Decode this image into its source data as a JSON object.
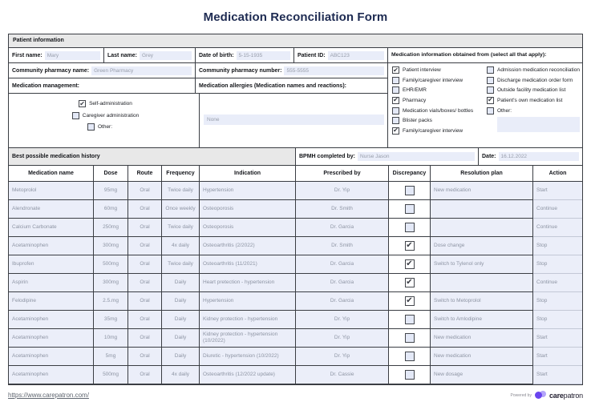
{
  "title": "Medication Reconciliation Form",
  "colors": {
    "title_navy": "#1e2b52",
    "field_lavender": "#e9edf9",
    "section_gray": "#e8e8e8",
    "brand_purple": "#6a45ef",
    "brand_purple_light": "#b3a5fa"
  },
  "patient": {
    "section_title": "Patient information",
    "first_name": {
      "label": "First name:",
      "value": "Mary"
    },
    "last_name": {
      "label": "Last name:",
      "value": "Grey"
    },
    "dob": {
      "label": "Date of birth:",
      "value": "5-15-1935"
    },
    "patient_id": {
      "label": "Patient ID:",
      "value": "ABC123"
    },
    "pharmacy_name": {
      "label": "Community pharmacy name:",
      "value": "Green Pharmacy"
    },
    "pharmacy_number": {
      "label": "Community pharmacy number:",
      "value": "555-5555"
    },
    "management": {
      "label": "Medication management:",
      "options": [
        {
          "label": "Self-administration",
          "checked": true
        },
        {
          "label": "Caregiver administration",
          "checked": false
        },
        {
          "label": "Other:",
          "checked": false,
          "has_input": true
        }
      ]
    },
    "allergies": {
      "label": "Medication allergies (Medication names and reactions):",
      "value": "None"
    }
  },
  "sources": {
    "title": "Medication information obtained from (select all that apply):",
    "col1": [
      {
        "label": "Patient interview",
        "checked": true
      },
      {
        "label": "Family/caregiver interview",
        "checked": false
      },
      {
        "label": "EHR/EMR",
        "checked": false
      },
      {
        "label": "Pharmacy",
        "checked": true
      },
      {
        "label": "Medication vials/boxes/ bottles",
        "checked": false
      },
      {
        "label": "Blister packs",
        "checked": false
      },
      {
        "label": "Family/caregiver interview",
        "checked": true
      }
    ],
    "col2": [
      {
        "label": "Admission medication reconciliation",
        "checked": false
      },
      {
        "label": "Discharge medication order form",
        "checked": false
      },
      {
        "label": "Outside facility medication list",
        "checked": false
      },
      {
        "label": "Patient's own medication list",
        "checked": true
      },
      {
        "label": "Other:",
        "checked": false,
        "has_input_below": true
      }
    ]
  },
  "bpmh": {
    "history_label": "Best possible medication history",
    "completed_by_label": "BPMH completed by:",
    "completed_by_value": "Nurse Jason",
    "date_label": "Date:",
    "date_value": "16.12.2022"
  },
  "table": {
    "headers": [
      "Medication name",
      "Dose",
      "Route",
      "Frequency",
      "Indication",
      "Prescribed by",
      "Discrepancy",
      "Resolution plan",
      "Action"
    ],
    "rows": [
      {
        "medication": "Metoprolol",
        "dose": "95mg",
        "route": "Oral",
        "frequency": "Twice daily",
        "indication": "Hypertension",
        "prescriber": "Dr. Yip",
        "discrepancy": false,
        "resolution": "New medication",
        "action": "Start"
      },
      {
        "medication": "Alendronate",
        "dose": "60mg",
        "route": "Oral",
        "frequency": "Once weekly",
        "indication": "Osteoporosis",
        "prescriber": "Dr. Smith",
        "discrepancy": false,
        "resolution": "",
        "action": "Continue"
      },
      {
        "medication": "Calcium Carbonate",
        "dose": "250mg",
        "route": "Oral",
        "frequency": "Twice daily",
        "indication": "Osteoporosis",
        "prescriber": "Dr. Garcia",
        "discrepancy": false,
        "resolution": "",
        "action": "Continue"
      },
      {
        "medication": "Acetaminophen",
        "dose": "300mg",
        "route": "Oral",
        "frequency": "4x daily",
        "indication": "Osteoarthritis (2/2022)",
        "prescriber": "Dr. Smith",
        "discrepancy": true,
        "resolution": "Dose change",
        "action": "Stop"
      },
      {
        "medication": "Ibuprofen",
        "dose": "500mg",
        "route": "Oral",
        "frequency": "Twice daily",
        "indication": "Osteoarthritis (11/2021)",
        "prescriber": "Dr. Garcia",
        "discrepancy": true,
        "resolution": "Switch to Tylenol only",
        "action": "Stop"
      },
      {
        "medication": "Aspirin",
        "dose": "300mg",
        "route": "Oral",
        "frequency": "Daily",
        "indication": "Heart pretection - hypertension",
        "prescriber": "Dr. Garcia",
        "discrepancy": true,
        "resolution": "",
        "action": "Continue"
      },
      {
        "medication": "Felodipine",
        "dose": "2.5.mg",
        "route": "Oral",
        "frequency": "Daily",
        "indication": "Hypertension",
        "prescriber": "Dr. Garcia",
        "discrepancy": true,
        "resolution": "Switch to Metoprolol",
        "action": "Stop"
      },
      {
        "medication": "Acetaminophen",
        "dose": "35mg",
        "route": "Oral",
        "frequency": "Daily",
        "indication": "Kidney protection - hypertension",
        "prescriber": "Dr. Yip",
        "discrepancy": false,
        "resolution": "Switch to Amlodipine",
        "action": "Stop"
      },
      {
        "medication": "Acetaminophen",
        "dose": "10mg",
        "route": "Oral",
        "frequency": "Daily",
        "indication": "Kidney protection - hypertension (10/2022)",
        "prescriber": "Dr. Yip",
        "discrepancy": false,
        "resolution": "New medication",
        "action": "Start"
      },
      {
        "medication": "Acetaminophen",
        "dose": "5mg",
        "route": "Oral",
        "frequency": "Daily",
        "indication": "Diuretic - hypertension (10/2022)",
        "prescriber": "Dr. Yip",
        "discrepancy": false,
        "resolution": "New medication",
        "action": "Start"
      },
      {
        "medication": "Acetaminophen",
        "dose": "500mg",
        "route": "Oral",
        "frequency": "4x daily",
        "indication": "Osteoarthritis (12/2022 update)",
        "prescriber": "Dr. Cassie",
        "discrepancy": false,
        "resolution": "New dosage",
        "action": "Start"
      }
    ]
  },
  "footer": {
    "url": "https://www.carepatron.com/",
    "powered_by": "Powered by",
    "brand_bold": "care",
    "brand_rest": "patron"
  }
}
